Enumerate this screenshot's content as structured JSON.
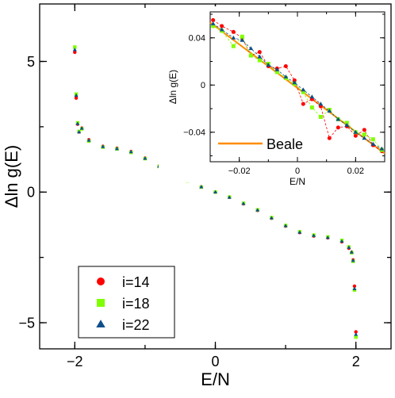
{
  "chart_data": [
    {
      "type": "scatter",
      "xlabel": "E/N",
      "ylabel": "Δln g(E)",
      "xlim": [
        -2.5,
        2.5
      ],
      "ylim": [
        -6,
        7.2
      ],
      "xticks": [
        -2,
        0,
        2
      ],
      "yticks": [
        -5,
        0,
        5
      ],
      "xtick_labels": [
        "−2",
        "0",
        "2"
      ],
      "ytick_labels": [
        "−5",
        "0",
        "5"
      ],
      "grid": false,
      "legend_position": "bottom-left",
      "series": [
        {
          "name": "i=14",
          "color": "#ff0000",
          "marker": "circle",
          "x": [
            -2.0,
            -1.98,
            -1.96,
            -1.94,
            -1.9,
            -1.8,
            -1.6,
            -1.4,
            -1.2,
            -1.0,
            -0.8,
            -0.6,
            -0.4,
            -0.2,
            0.0,
            0.2,
            0.4,
            0.6,
            0.8,
            1.0,
            1.2,
            1.4,
            1.6,
            1.8,
            1.9,
            1.94,
            1.96,
            1.98,
            2.0
          ],
          "y": [
            5.35,
            3.6,
            2.6,
            2.3,
            2.45,
            2.0,
            1.75,
            1.68,
            1.55,
            1.3,
            1.0,
            0.7,
            0.45,
            0.2,
            0.0,
            -0.2,
            -0.45,
            -0.7,
            -1.0,
            -1.3,
            -1.55,
            -1.68,
            -1.75,
            -1.9,
            -2.15,
            -2.3,
            -2.6,
            -3.6,
            -5.35
          ]
        },
        {
          "name": "i=18",
          "color": "#80ff00",
          "marker": "square",
          "x": [
            -2.0,
            -1.98,
            -1.96,
            -1.94,
            -1.9,
            -1.8,
            -1.6,
            -1.4,
            -1.2,
            -1.0,
            -0.8,
            -0.6,
            -0.4,
            -0.2,
            0.0,
            0.2,
            0.4,
            0.6,
            0.8,
            1.0,
            1.2,
            1.4,
            1.6,
            1.8,
            1.9,
            1.94,
            1.96,
            1.98,
            2.0
          ],
          "y": [
            5.55,
            3.75,
            2.65,
            2.32,
            2.42,
            1.95,
            1.72,
            1.65,
            1.52,
            1.28,
            0.98,
            0.68,
            0.43,
            0.19,
            0.0,
            -0.19,
            -0.43,
            -0.68,
            -0.98,
            -1.28,
            -1.52,
            -1.65,
            -1.72,
            -1.85,
            -2.1,
            -2.32,
            -2.65,
            -3.75,
            -5.55
          ]
        },
        {
          "name": "i=22",
          "color": "#104e8b",
          "marker": "triangle",
          "x": [
            -2.0,
            -1.98,
            -1.96,
            -1.94,
            -1.9,
            -1.8,
            -1.6,
            -1.4,
            -1.2,
            -1.0,
            -0.8,
            -0.6,
            -0.4,
            -0.2,
            0.0,
            0.2,
            0.4,
            0.6,
            0.8,
            1.0,
            1.2,
            1.4,
            1.6,
            1.8,
            1.9,
            1.94,
            1.96,
            1.98,
            2.0
          ],
          "y": [
            5.45,
            3.7,
            2.62,
            2.3,
            2.44,
            1.98,
            1.74,
            1.66,
            1.54,
            1.29,
            0.99,
            0.69,
            0.44,
            0.2,
            0.0,
            -0.2,
            -0.44,
            -0.69,
            -0.99,
            -1.29,
            -1.54,
            -1.66,
            -1.74,
            -1.88,
            -2.12,
            -2.3,
            -2.62,
            -3.7,
            -5.45
          ]
        }
      ]
    },
    {
      "type": "line",
      "xlabel": "E/N",
      "ylabel": "Δln g(E)",
      "xlim": [
        -0.03,
        0.03
      ],
      "ylim": [
        -0.065,
        0.062
      ],
      "xticks": [
        -0.02,
        0,
        0.02
      ],
      "yticks": [
        -0.04,
        0,
        0.04
      ],
      "xtick_labels": [
        "−0.02",
        "0",
        "0.02"
      ],
      "ytick_labels": [
        "−0.04",
        "0",
        "0.04"
      ],
      "grid": false,
      "legend_position": "bottom-left",
      "series": [
        {
          "name": "Beale",
          "color": "#ff8c00",
          "x": [
            -0.03,
            0.03
          ],
          "y": [
            0.053,
            -0.058
          ]
        },
        {
          "color": "#ff0000",
          "marker": "circle",
          "x": [
            -0.029,
            -0.026,
            -0.022,
            -0.019,
            -0.016,
            -0.013,
            -0.01,
            -0.007,
            -0.004,
            -0.001,
            0.002,
            0.005,
            0.008,
            0.011,
            0.014,
            0.017,
            0.02,
            0.023,
            0.026,
            0.029
          ],
          "y": [
            0.055,
            0.05,
            0.045,
            0.04,
            0.025,
            0.028,
            0.016,
            0.014,
            0.016,
            0.004,
            -0.016,
            -0.012,
            -0.018,
            -0.045,
            -0.036,
            -0.035,
            -0.043,
            -0.038,
            -0.051,
            -0.056
          ]
        },
        {
          "color": "#80ff00",
          "marker": "square",
          "x": [
            -0.029,
            -0.026,
            -0.022,
            -0.019,
            -0.016,
            -0.013,
            -0.01,
            -0.007,
            -0.004,
            -0.001,
            0.002,
            0.005,
            0.008,
            0.011,
            0.014,
            0.017,
            0.02,
            0.023,
            0.026,
            0.029
          ],
          "y": [
            0.05,
            0.046,
            0.033,
            0.041,
            0.025,
            0.021,
            0.018,
            0.011,
            0.006,
            0.001,
            -0.006,
            -0.019,
            -0.027,
            -0.021,
            -0.029,
            -0.032,
            -0.04,
            -0.042,
            -0.046,
            -0.055
          ]
        },
        {
          "color": "#104e8b",
          "marker": "triangle",
          "x": [
            -0.029,
            -0.026,
            -0.022,
            -0.019,
            -0.016,
            -0.013,
            -0.01,
            -0.007,
            -0.004,
            -0.001,
            0.002,
            0.005,
            0.008,
            0.011,
            0.014,
            0.017,
            0.02,
            0.023,
            0.026,
            0.029
          ],
          "y": [
            0.052,
            0.047,
            0.04,
            0.038,
            0.031,
            0.024,
            0.017,
            0.013,
            0.007,
            0.002,
            -0.004,
            -0.01,
            -0.016,
            -0.022,
            -0.029,
            -0.034,
            -0.04,
            -0.045,
            -0.05,
            -0.054
          ]
        }
      ]
    }
  ]
}
